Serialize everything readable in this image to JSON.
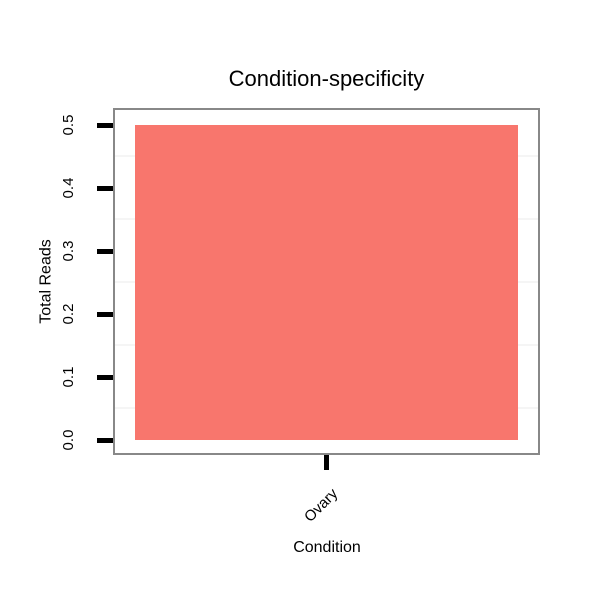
{
  "chart_data": {
    "type": "bar",
    "title": "Condition-specificity",
    "xlabel": "Condition",
    "ylabel": "Total Reads",
    "categories": [
      "Ovary"
    ],
    "values": [
      0.5
    ],
    "series": [
      {
        "name": "Total Reads",
        "values": [
          0.5
        ]
      }
    ],
    "ylim": [
      0.0,
      0.5
    ],
    "ytick_labels": [
      "0.0",
      "0.1",
      "0.2",
      "0.3",
      "0.4",
      "0.5"
    ],
    "ytick_values": [
      0.0,
      0.1,
      0.2,
      0.3,
      0.4,
      0.5
    ],
    "minor_gridlines": [
      0.05,
      0.15,
      0.25,
      0.35,
      0.45
    ],
    "xtick_label_rotation_deg": 45,
    "ytick_label_rotation_deg": 90,
    "legend": "none",
    "grid": "minor horizontal only",
    "colors": {
      "bar_fill": "#F8766D",
      "panel_border": "#888888",
      "tick": "#000000",
      "minor_gridline": "#F5F5F5",
      "background": "#FFFFFF",
      "text": "#000000"
    }
  }
}
